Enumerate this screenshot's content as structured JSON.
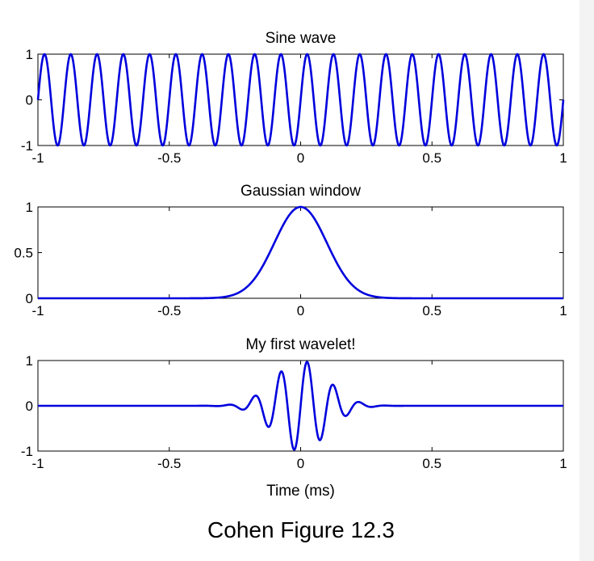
{
  "caption": "Cohen Figure 12.3",
  "colors": {
    "line": "#0000dd",
    "axes": "#000000",
    "background": "#ffffff"
  },
  "chart_data": [
    {
      "type": "line",
      "title": "Sine wave",
      "xlabel": "",
      "ylabel": "",
      "xlim": [
        -1,
        1
      ],
      "ylim": [
        -1,
        1
      ],
      "xticks": [
        "-1",
        "-0.5",
        "0",
        "0.5",
        "1"
      ],
      "yticks": [
        "-1",
        "0",
        "1"
      ],
      "grid": false,
      "series": [
        {
          "function": "sin(2*pi*10*t)",
          "frequency_hz": 10,
          "amplitude": 1
        }
      ]
    },
    {
      "type": "line",
      "title": "Gaussian window",
      "xlabel": "",
      "ylabel": "",
      "xlim": [
        -1,
        1
      ],
      "ylim": [
        0,
        1
      ],
      "xticks": [
        "-1",
        "-0.5",
        "0",
        "0.5",
        "1"
      ],
      "yticks": [
        "0",
        "0.5",
        "1"
      ],
      "grid": false,
      "series": [
        {
          "function": "exp(-t^2/(2*s^2))",
          "s": 0.1
        }
      ]
    },
    {
      "type": "line",
      "title": "My first wavelet!",
      "xlabel": "Time (ms)",
      "ylabel": "",
      "xlim": [
        -1,
        1
      ],
      "ylim": [
        -1,
        1
      ],
      "xticks": [
        "-1",
        "-0.5",
        "0",
        "0.5",
        "1"
      ],
      "yticks": [
        "-1",
        "0",
        "1"
      ],
      "grid": false,
      "series": [
        {
          "function": "sin(2*pi*10*t)*exp(-t^2/(2*s^2))",
          "frequency_hz": 10,
          "s": 0.1
        }
      ]
    }
  ]
}
